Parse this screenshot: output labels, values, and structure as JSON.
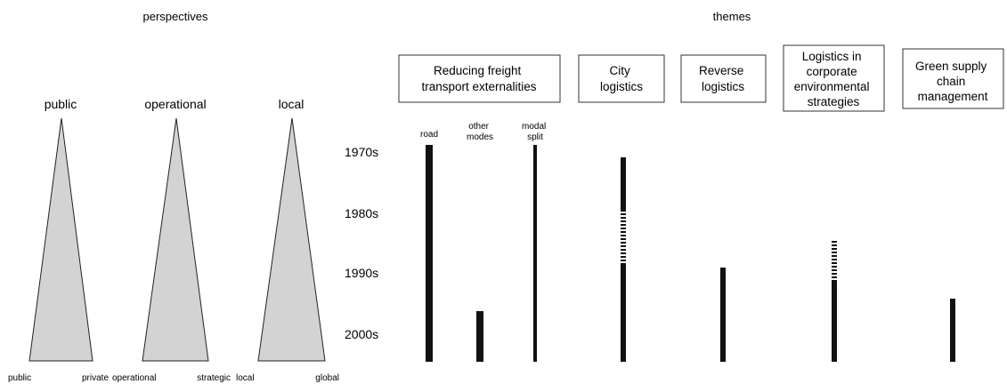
{
  "headers": {
    "perspectives": "perspectives",
    "themes": "themes"
  },
  "perspectives": [
    {
      "title": "public",
      "left": "public",
      "right": "private"
    },
    {
      "title": "operational",
      "left": "operational",
      "right": "strategic"
    },
    {
      "title": "local",
      "left": "local",
      "right": "global"
    }
  ],
  "decades": [
    "1970s",
    "1980s",
    "1990s",
    "2000s"
  ],
  "themes": [
    {
      "lines": [
        "Reducing freight",
        "transport externalities"
      ]
    },
    {
      "lines": [
        "City",
        "logistics"
      ]
    },
    {
      "lines": [
        "Reverse",
        "logistics"
      ]
    },
    {
      "lines": [
        "Logistics in",
        "corporate",
        "environmental",
        "strategies"
      ]
    },
    {
      "lines": [
        "Green supply",
        "chain",
        "management"
      ]
    }
  ],
  "sub_columns": [
    {
      "lines": [
        "road"
      ]
    },
    {
      "lines": [
        "other",
        "modes"
      ]
    },
    {
      "lines": [
        "modal",
        "split"
      ]
    }
  ],
  "colors": {
    "triangle_fill": "#d3d3d3",
    "bar": "#111111",
    "box_border": "#333333"
  }
}
